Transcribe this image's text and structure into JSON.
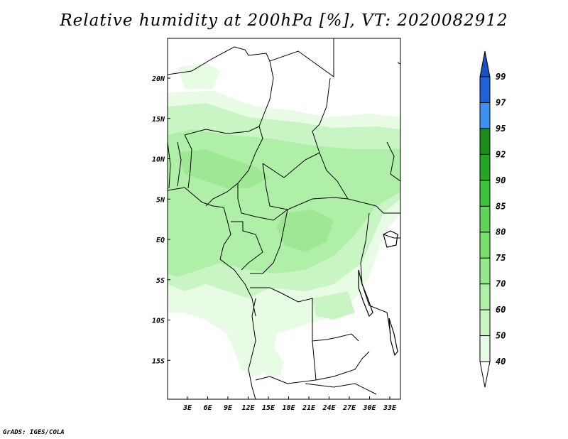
{
  "title": "Relative humidity at 200hPa [%], VT: 2020082912",
  "footer": "GrADS: IGES/COLA",
  "map": {
    "lat_labels": [
      "20N",
      "15N",
      "10N",
      "5N",
      "EQ",
      "5S",
      "10S",
      "15S"
    ],
    "lon_labels": [
      "3E",
      "6E",
      "9E",
      "12E",
      "15E",
      "18E",
      "21E",
      "24E",
      "27E",
      "30E",
      "33E"
    ]
  },
  "colorbar": {
    "levels": [
      "40",
      "50",
      "60",
      "70",
      "75",
      "80",
      "85",
      "90",
      "92",
      "95",
      "97",
      "99"
    ],
    "colors": [
      "#ffffff",
      "#e6fbe3",
      "#c8f4c2",
      "#b0efa8",
      "#97e88c",
      "#78df6c",
      "#5fd558",
      "#3dc33a",
      "#24a624",
      "#1b8c1b",
      "#3d8ff0",
      "#2060d8",
      "#1a4fc0"
    ]
  }
}
